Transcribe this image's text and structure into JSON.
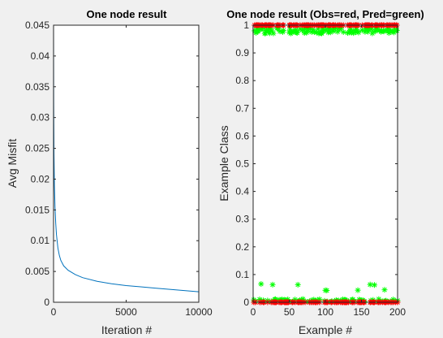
{
  "colors": {
    "figure_background": "#f0f0f0",
    "axes_background": "#ffffff",
    "axes_frame": "#262626",
    "line_series": "#0072bd",
    "observed_marker": "#ff0000",
    "predicted_marker": "#00ff00"
  },
  "chart_data": [
    {
      "type": "line",
      "title": "One node result",
      "xlabel": "Iteration #",
      "ylabel": "Avg Misfit",
      "xlim": [
        0,
        10000
      ],
      "ylim": [
        0,
        0.045
      ],
      "xticks": [
        0,
        5000,
        10000
      ],
      "xtick_labels": [
        "0",
        "5000",
        "10000"
      ],
      "yticks": [
        0,
        0.005,
        0.01,
        0.015,
        0.02,
        0.025,
        0.03,
        0.035,
        0.04,
        0.045
      ],
      "ytick_labels": [
        "0",
        "0.005",
        "0.01",
        "0.015",
        "0.02",
        "0.025",
        "0.03",
        "0.035",
        "0.04",
        "0.045"
      ],
      "grid": false,
      "series": [
        {
          "color": "#0072bd",
          "x": [
            0,
            10,
            30,
            60,
            100,
            150,
            200,
            300,
            400,
            500,
            700,
            1000,
            1500,
            2000,
            3000,
            4000,
            5000,
            6000,
            7000,
            8000,
            9000,
            10000
          ],
          "y": [
            0.045,
            0.032,
            0.024,
            0.019,
            0.0155,
            0.0128,
            0.011,
            0.0088,
            0.0076,
            0.0068,
            0.0059,
            0.0052,
            0.0045,
            0.004,
            0.0034,
            0.003,
            0.0027,
            0.0025,
            0.0023,
            0.0021,
            0.0019,
            0.0017
          ]
        }
      ]
    },
    {
      "type": "scatter",
      "title": "One node result (Obs=red, Pred=green)",
      "xlabel": "Example #",
      "ylabel": "Example Class",
      "xlim": [
        0,
        200
      ],
      "ylim": [
        0,
        1
      ],
      "xticks": [
        0,
        50,
        100,
        150,
        200
      ],
      "xtick_labels": [
        "0",
        "50",
        "100",
        "150",
        "200"
      ],
      "yticks": [
        0,
        0.1,
        0.2,
        0.3,
        0.4,
        0.5,
        0.6,
        0.7,
        0.8,
        0.9,
        1
      ],
      "ytick_labels": [
        "0",
        "0.1",
        "0.2",
        "0.3",
        "0.4",
        "0.5",
        "0.6",
        "0.7",
        "0.8",
        "0.9",
        "1"
      ],
      "grid": false,
      "observed": {
        "marker": "*",
        "color": "#ff0000",
        "values": [
          0,
          1,
          0,
          1,
          1,
          1,
          1,
          1,
          0,
          1,
          0,
          1,
          1,
          0,
          0,
          1,
          1,
          1,
          1,
          0,
          1,
          1,
          1,
          1,
          0,
          1,
          0,
          1,
          0,
          0,
          0,
          0,
          1,
          1,
          1,
          0,
          1,
          0,
          0,
          0,
          1,
          1,
          0,
          0,
          0,
          0,
          0,
          0,
          0,
          1,
          1,
          1,
          1,
          0,
          0,
          1,
          1,
          0,
          1,
          1,
          1,
          0,
          0,
          0,
          1,
          0,
          0,
          1,
          0,
          1,
          1,
          0,
          1,
          1,
          1,
          1,
          1,
          0,
          1,
          0,
          1,
          0,
          1,
          0,
          1,
          0,
          0,
          1,
          0,
          1,
          1,
          0,
          1,
          1,
          1,
          1,
          1,
          1,
          0,
          0,
          1,
          0,
          0,
          1,
          1,
          1,
          1,
          0,
          0,
          1,
          1,
          1,
          0,
          1,
          0,
          0,
          1,
          0,
          1,
          1,
          0,
          1,
          0,
          0,
          1,
          0,
          0,
          0,
          0,
          0,
          1,
          0,
          1,
          1,
          1,
          1,
          0,
          0,
          1,
          0,
          1,
          1,
          1,
          1,
          0,
          1,
          0,
          0,
          0,
          0,
          1,
          0,
          0,
          0,
          1,
          1,
          1,
          1,
          1,
          1,
          1,
          0,
          0,
          1,
          1,
          0,
          0,
          0,
          1,
          1,
          1,
          1,
          0,
          0,
          1,
          0,
          1,
          1,
          0,
          1,
          1,
          0,
          0,
          0,
          1,
          1,
          0,
          1,
          1,
          0,
          1,
          0,
          1,
          0,
          1,
          1,
          0,
          1,
          1,
          0
        ]
      },
      "predicted": {
        "marker": "*",
        "color": "#00ff00",
        "values": [
          0.0085,
          0.9797,
          0.0041,
          0.9726,
          0.9848,
          0.9779,
          0.9786,
          0.9831,
          0.0103,
          0.9857,
          0.0659,
          0.9871,
          0.9896,
          0.0067,
          0.002,
          0.9705,
          0.9709,
          0.9808,
          0.9808,
          0.0061,
          0.9778,
          0.9891,
          0.9711,
          0.9875,
          0.0033,
          0.9797,
          0.0635,
          0.9705,
          0.0053,
          0.0099,
          0.0111,
          0.0067,
          0.9892,
          0.9899,
          0.9889,
          0.0085,
          0.9777,
          0.0083,
          0.0062,
          0.0102,
          0.9754,
          0.9811,
          0.0088,
          0.0061,
          0.0076,
          0.0018,
          0.0043,
          0.0103,
          0.0011,
          0.9743,
          0.9852,
          0.9703,
          0.9739,
          0.0012,
          0.0027,
          0.9769,
          0.9796,
          0.0097,
          0.9827,
          0.974,
          0.9722,
          0.0632,
          0.0043,
          0.0054,
          0.9856,
          0.0028,
          0.0095,
          0.9827,
          0.0114,
          0.9839,
          0.9719,
          0.003,
          0.9898,
          0.973,
          0.9782,
          0.9829,
          0.9893,
          0.0036,
          0.9877,
          0.0031,
          0.9755,
          0.008,
          0.9845,
          0.0093,
          0.9749,
          0.0027,
          0.0045,
          0.9742,
          0.0081,
          0.9863,
          0.9701,
          0.0106,
          0.9731,
          0.9712,
          0.9706,
          0.9858,
          0.9776,
          0.9807,
          0.005,
          0.0431,
          0.9857,
          0.0426,
          0.0025,
          0.974,
          0.9834,
          0.9886,
          0.9742,
          0.002,
          0.0039,
          0.9823,
          0.9787,
          0.9894,
          0.0039,
          0.9893,
          0.0078,
          0.0043,
          0.9763,
          0.0063,
          0.9877,
          0.9853,
          0.0041,
          0.9897,
          0.0022,
          0.0104,
          0.9753,
          0.0066,
          0.0095,
          0.0074,
          0.0005,
          0.0049,
          0.9719,
          0.0034,
          0.9738,
          0.9803,
          0.9839,
          0.9731,
          0.0087,
          0.0099,
          0.9716,
          0.0042,
          0.9812,
          0.9749,
          0.9847,
          0.9788,
          0.0435,
          0.9734,
          0.0096,
          0.0075,
          0.002,
          0.0068,
          0.9824,
          0.0076,
          0.0026,
          0.0036,
          0.976,
          0.9879,
          0.9861,
          0.9887,
          0.9766,
          0.9843,
          0.9888,
          0.0639,
          0.0061,
          0.9858,
          0.9706,
          0.0083,
          0.0013,
          0.0623,
          0.9774,
          0.9847,
          0.984,
          0.9866,
          0.0017,
          0.0113,
          0.9806,
          0.0027,
          0.9761,
          0.9803,
          0.0032,
          0.9795,
          0.9776,
          0.0449,
          0.0047,
          0.0055,
          0.9825,
          0.9819,
          0.0014,
          0.9719,
          0.9844,
          0.0035,
          0.9766,
          0.0019,
          0.9776,
          0.0099,
          0.9739,
          0.9842,
          0.0039,
          0.9847,
          0.9809,
          0.0058
        ]
      }
    }
  ]
}
